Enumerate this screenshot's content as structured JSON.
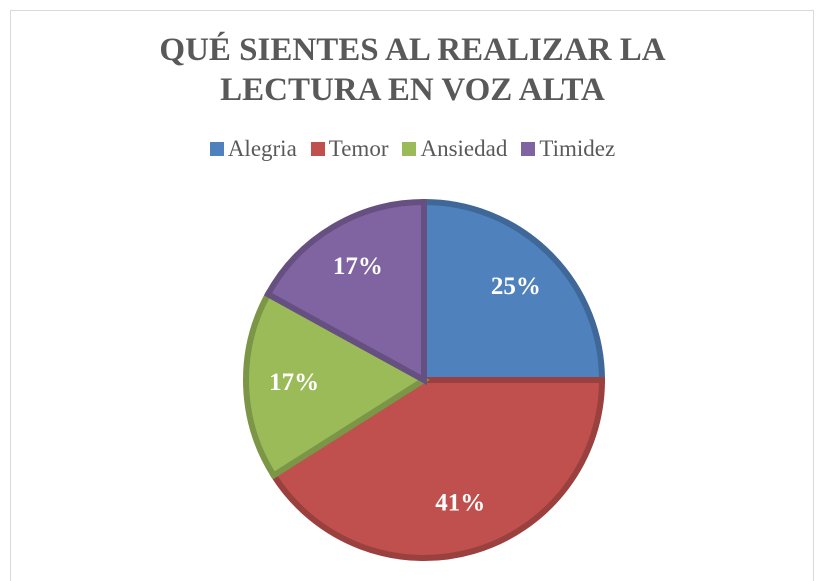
{
  "chart_data": {
    "type": "pie",
    "title": "QUÉ SIENTES AL REALIZAR LA LECTURA EN VOZ ALTA",
    "categories": [
      "Alegria",
      "Temor",
      "Ansiedad",
      "Timidez"
    ],
    "values": [
      25,
      41,
      17,
      17
    ],
    "value_labels": [
      "25%",
      "41%",
      "17%",
      "17%"
    ],
    "colors": [
      "#4f81bd",
      "#c0504d",
      "#9bbb59",
      "#8064a2"
    ],
    "legend": "top"
  }
}
